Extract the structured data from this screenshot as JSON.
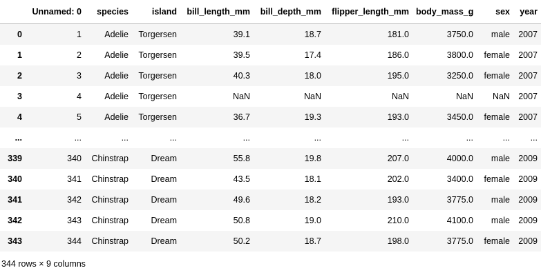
{
  "dataframe": {
    "columns": [
      "Unnamed: 0",
      "species",
      "island",
      "bill_length_mm",
      "bill_depth_mm",
      "flipper_length_mm",
      "body_mass_g",
      "sex",
      "year"
    ],
    "rows": [
      {
        "index": "0",
        "cells": [
          "1",
          "Adelie",
          "Torgersen",
          "39.1",
          "18.7",
          "181.0",
          "3750.0",
          "male",
          "2007"
        ]
      },
      {
        "index": "1",
        "cells": [
          "2",
          "Adelie",
          "Torgersen",
          "39.5",
          "17.4",
          "186.0",
          "3800.0",
          "female",
          "2007"
        ]
      },
      {
        "index": "2",
        "cells": [
          "3",
          "Adelie",
          "Torgersen",
          "40.3",
          "18.0",
          "195.0",
          "3250.0",
          "female",
          "2007"
        ]
      },
      {
        "index": "3",
        "cells": [
          "4",
          "Adelie",
          "Torgersen",
          "NaN",
          "NaN",
          "NaN",
          "NaN",
          "NaN",
          "2007"
        ]
      },
      {
        "index": "4",
        "cells": [
          "5",
          "Adelie",
          "Torgersen",
          "36.7",
          "19.3",
          "193.0",
          "3450.0",
          "female",
          "2007"
        ]
      },
      {
        "index": "...",
        "cells": [
          "...",
          "...",
          "...",
          "...",
          "...",
          "...",
          "...",
          "...",
          "..."
        ]
      },
      {
        "index": "339",
        "cells": [
          "340",
          "Chinstrap",
          "Dream",
          "55.8",
          "19.8",
          "207.0",
          "4000.0",
          "male",
          "2009"
        ]
      },
      {
        "index": "340",
        "cells": [
          "341",
          "Chinstrap",
          "Dream",
          "43.5",
          "18.1",
          "202.0",
          "3400.0",
          "female",
          "2009"
        ]
      },
      {
        "index": "341",
        "cells": [
          "342",
          "Chinstrap",
          "Dream",
          "49.6",
          "18.2",
          "193.0",
          "3775.0",
          "male",
          "2009"
        ]
      },
      {
        "index": "342",
        "cells": [
          "343",
          "Chinstrap",
          "Dream",
          "50.8",
          "19.0",
          "210.0",
          "4100.0",
          "male",
          "2009"
        ]
      },
      {
        "index": "343",
        "cells": [
          "344",
          "Chinstrap",
          "Dream",
          "50.2",
          "18.7",
          "198.0",
          "3775.0",
          "female",
          "2009"
        ]
      }
    ],
    "shape_caption": "344 rows × 9 columns"
  }
}
